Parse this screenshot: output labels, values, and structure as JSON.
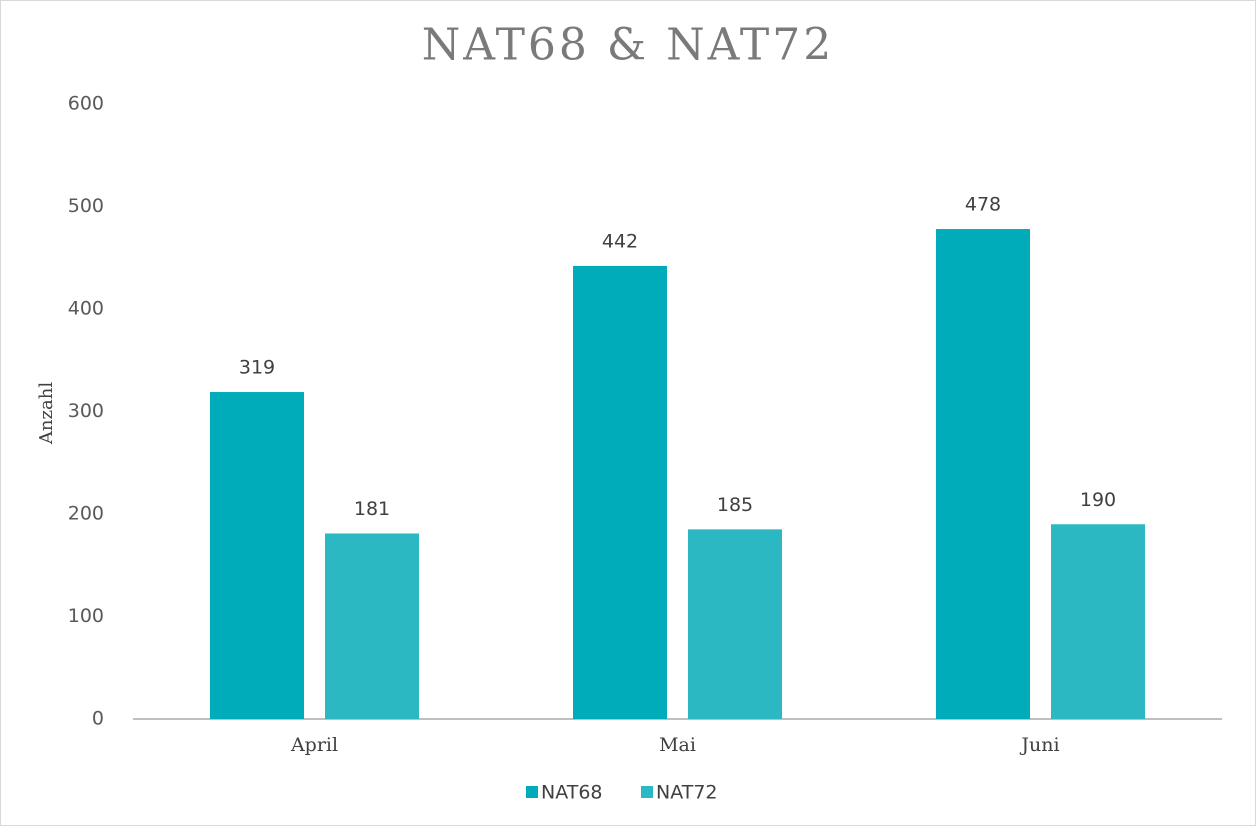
{
  "chart_data": {
    "type": "bar",
    "title": "NAT68 & NAT72",
    "y_label": "Anzahl",
    "categories": [
      "April",
      "Mai",
      "Juni"
    ],
    "series": [
      {
        "name": "NAT68",
        "color": "#00acb9",
        "values": [
          319,
          442,
          478
        ]
      },
      {
        "name": "NAT72",
        "color": "#2bb8c2",
        "values": [
          181,
          185,
          190
        ]
      }
    ],
    "ylim": [
      0,
      600
    ],
    "yticks": [
      0,
      100,
      200,
      300,
      400,
      500,
      600
    ],
    "grid": false,
    "legend": "bottom"
  }
}
